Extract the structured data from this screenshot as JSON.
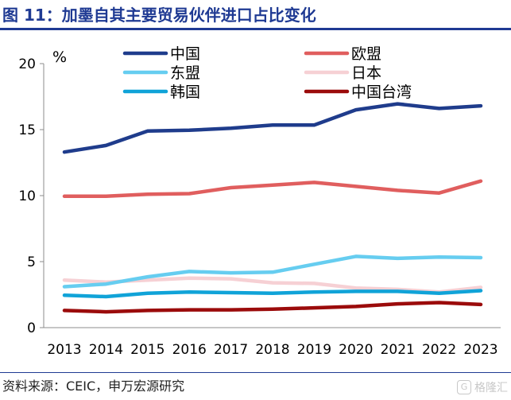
{
  "header": {
    "title": "图 11：加墨自其主要贸易伙伴进口占比变化"
  },
  "footer": {
    "source": "资料来源：CEIC，申万宏源研究"
  },
  "watermark": {
    "icon": "gelonghui-logo-icon",
    "text": "格隆汇"
  },
  "chart_data": {
    "type": "line",
    "title": "",
    "xlabel": "",
    "ylabel": "%",
    "ylim": [
      0,
      20
    ],
    "yticks": [
      0,
      5,
      10,
      15,
      20
    ],
    "grid": false,
    "legend_position": "top",
    "categories": [
      "2013",
      "2014",
      "2015",
      "2016",
      "2017",
      "2018",
      "2019",
      "2020",
      "2021",
      "2022",
      "2023"
    ],
    "series": [
      {
        "name": "中国",
        "color": "#1f3c8c",
        "values": [
          13.3,
          13.8,
          14.9,
          14.95,
          15.1,
          15.35,
          15.35,
          16.5,
          16.95,
          16.6,
          16.8
        ]
      },
      {
        "name": "欧盟",
        "color": "#e05e5e",
        "values": [
          9.95,
          9.95,
          10.1,
          10.15,
          10.6,
          10.8,
          11.0,
          10.7,
          10.4,
          10.2,
          11.1
        ]
      },
      {
        "name": "东盟",
        "color": "#66cdf0",
        "values": [
          3.1,
          3.3,
          3.85,
          4.25,
          4.15,
          4.2,
          4.8,
          5.4,
          5.25,
          5.35,
          5.3
        ]
      },
      {
        "name": "日本",
        "color": "#f6d0d4",
        "values": [
          3.6,
          3.45,
          3.6,
          3.75,
          3.7,
          3.4,
          3.35,
          3.0,
          2.9,
          2.7,
          3.05
        ]
      },
      {
        "name": "韩国",
        "color": "#10a3d8",
        "values": [
          2.45,
          2.35,
          2.6,
          2.7,
          2.65,
          2.6,
          2.7,
          2.75,
          2.75,
          2.6,
          2.8
        ]
      },
      {
        "name": "中国台湾",
        "color": "#9b0b0b",
        "values": [
          1.3,
          1.2,
          1.3,
          1.35,
          1.35,
          1.4,
          1.5,
          1.6,
          1.8,
          1.9,
          1.75
        ]
      }
    ]
  }
}
